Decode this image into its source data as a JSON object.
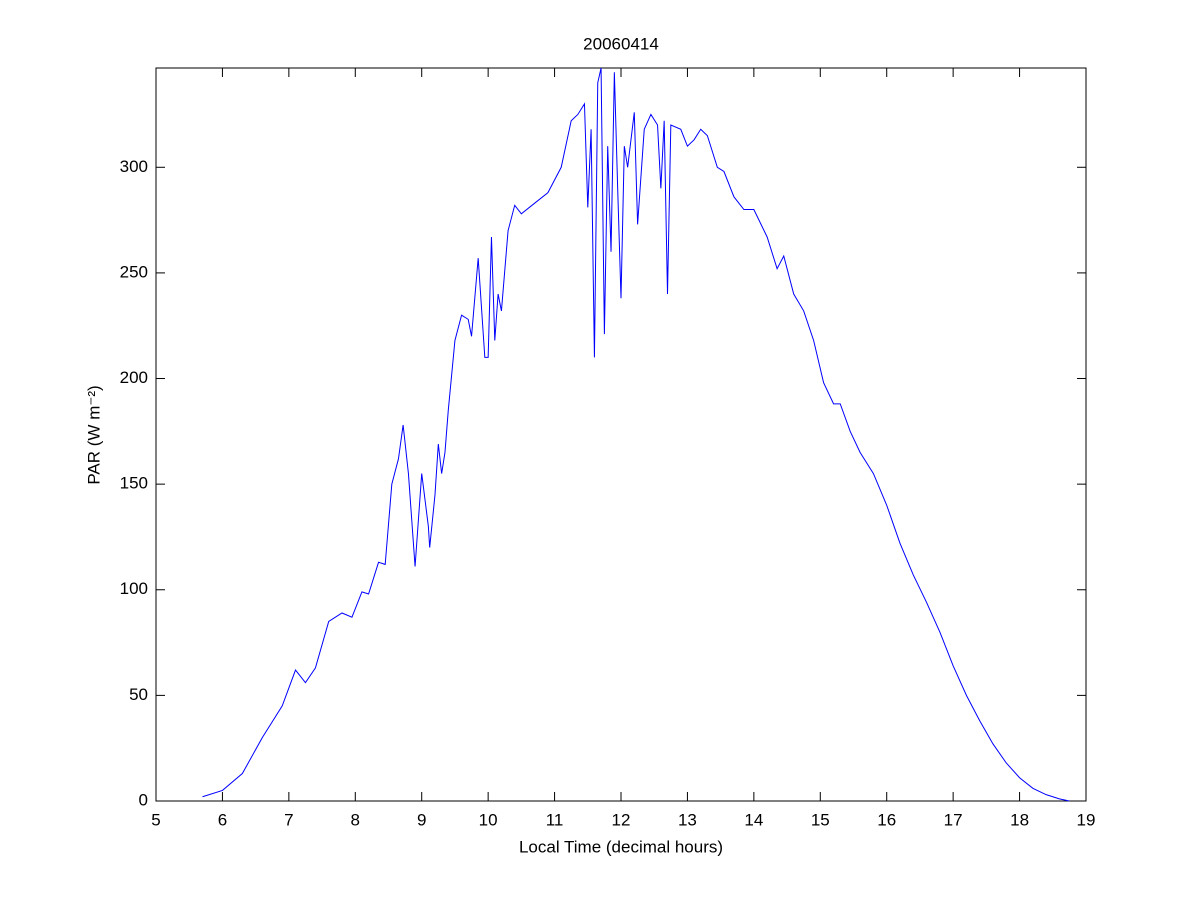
{
  "chart_data": {
    "type": "line",
    "title": "20060414",
    "xlabel": "Local Time (decimal hours)",
    "ylabel": "PAR (W m⁻²)",
    "xlim": [
      5,
      19
    ],
    "ylim": [
      0,
      347
    ],
    "xticks": [
      5,
      6,
      7,
      8,
      9,
      10,
      11,
      12,
      13,
      14,
      15,
      16,
      17,
      18,
      19
    ],
    "yticks": [
      0,
      50,
      100,
      150,
      200,
      250,
      300
    ],
    "grid": false,
    "series": [
      {
        "color": "#0000ff",
        "x": [
          5.7,
          6.0,
          6.3,
          6.6,
          6.9,
          7.1,
          7.25,
          7.4,
          7.6,
          7.8,
          7.95,
          8.1,
          8.2,
          8.35,
          8.45,
          8.55,
          8.65,
          8.72,
          8.8,
          8.9,
          9.0,
          9.1,
          9.12,
          9.2,
          9.25,
          9.3,
          9.35,
          9.4,
          9.5,
          9.6,
          9.7,
          9.75,
          9.85,
          9.95,
          10.0,
          10.05,
          10.1,
          10.15,
          10.2,
          10.3,
          10.4,
          10.5,
          10.7,
          10.9,
          11.1,
          11.25,
          11.35,
          11.45,
          11.5,
          11.55,
          11.6,
          11.65,
          11.7,
          11.75,
          11.8,
          11.85,
          11.9,
          11.95,
          12.0,
          12.05,
          12.1,
          12.2,
          12.25,
          12.35,
          12.45,
          12.55,
          12.6,
          12.65,
          12.7,
          12.75,
          12.9,
          13.0,
          13.1,
          13.2,
          13.3,
          13.45,
          13.55,
          13.7,
          13.85,
          14.0,
          14.2,
          14.35,
          14.45,
          14.6,
          14.75,
          14.9,
          15.05,
          15.2,
          15.3,
          15.45,
          15.6,
          15.8,
          16.0,
          16.2,
          16.4,
          16.6,
          16.8,
          17.0,
          17.2,
          17.4,
          17.6,
          17.8,
          18.0,
          18.2,
          18.4,
          18.6,
          18.75
        ],
        "values": [
          2,
          5,
          13,
          30,
          45,
          62,
          56,
          63,
          85,
          89,
          87,
          99,
          98,
          113,
          112,
          150,
          162,
          178,
          155,
          111,
          155,
          130,
          120,
          145,
          169,
          155,
          165,
          185,
          218,
          230,
          228,
          220,
          257,
          210,
          210,
          267,
          218,
          240,
          232,
          270,
          282,
          278,
          283,
          288,
          300,
          322,
          325,
          330,
          281,
          318,
          210,
          340,
          347,
          221,
          310,
          260,
          345,
          290,
          238,
          310,
          300,
          326,
          273,
          318,
          325,
          320,
          290,
          322,
          240,
          320,
          318,
          310,
          313,
          318,
          315,
          300,
          298,
          286,
          280,
          280,
          267,
          252,
          258,
          240,
          232,
          218,
          198,
          188,
          188,
          175,
          165,
          155,
          140,
          122,
          107,
          94,
          80,
          64,
          50,
          38,
          27,
          18,
          11,
          6,
          3,
          1,
          0
        ]
      }
    ]
  }
}
